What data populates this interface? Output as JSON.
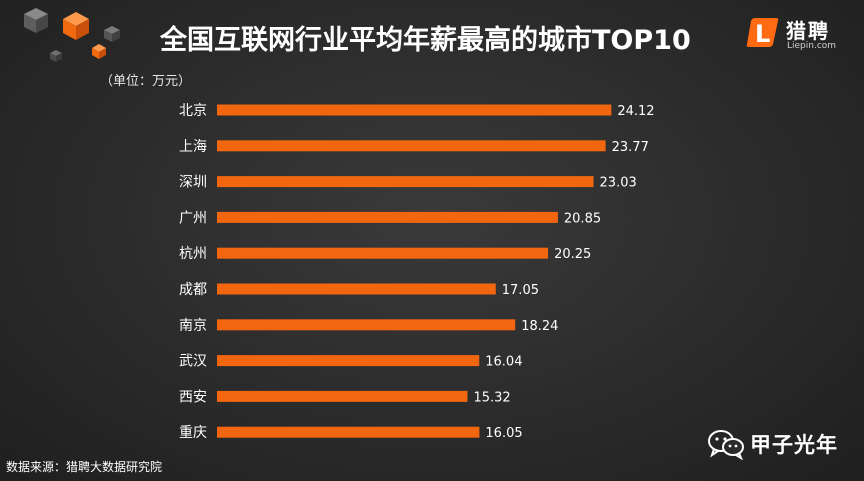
{
  "header": {
    "title": "全国互联网行业平均年薪最高的城市TOP10",
    "unit": "（单位：万元）"
  },
  "logo": {
    "mark": "L",
    "name": "猎聘",
    "url": "Liepin.com",
    "accent": "#ff6a13"
  },
  "footer": {
    "source": "数据来源：猎聘大数据研究院"
  },
  "watermark": {
    "text": "甲子光年",
    "icon": "wechat-icon"
  },
  "chart_data": {
    "type": "bar",
    "orientation": "horizontal",
    "title": "全国互联网行业平均年薪最高的城市TOP10",
    "ylabel": "（单位：万元）",
    "categories": [
      "北京",
      "上海",
      "深圳",
      "广州",
      "杭州",
      "成都",
      "南京",
      "武汉",
      "西安",
      "重庆"
    ],
    "values": [
      24.12,
      23.77,
      23.03,
      20.85,
      20.25,
      17.05,
      18.24,
      16.04,
      15.32,
      16.05
    ],
    "bar_color": "#f2660f",
    "grid": false,
    "legend": "none"
  }
}
